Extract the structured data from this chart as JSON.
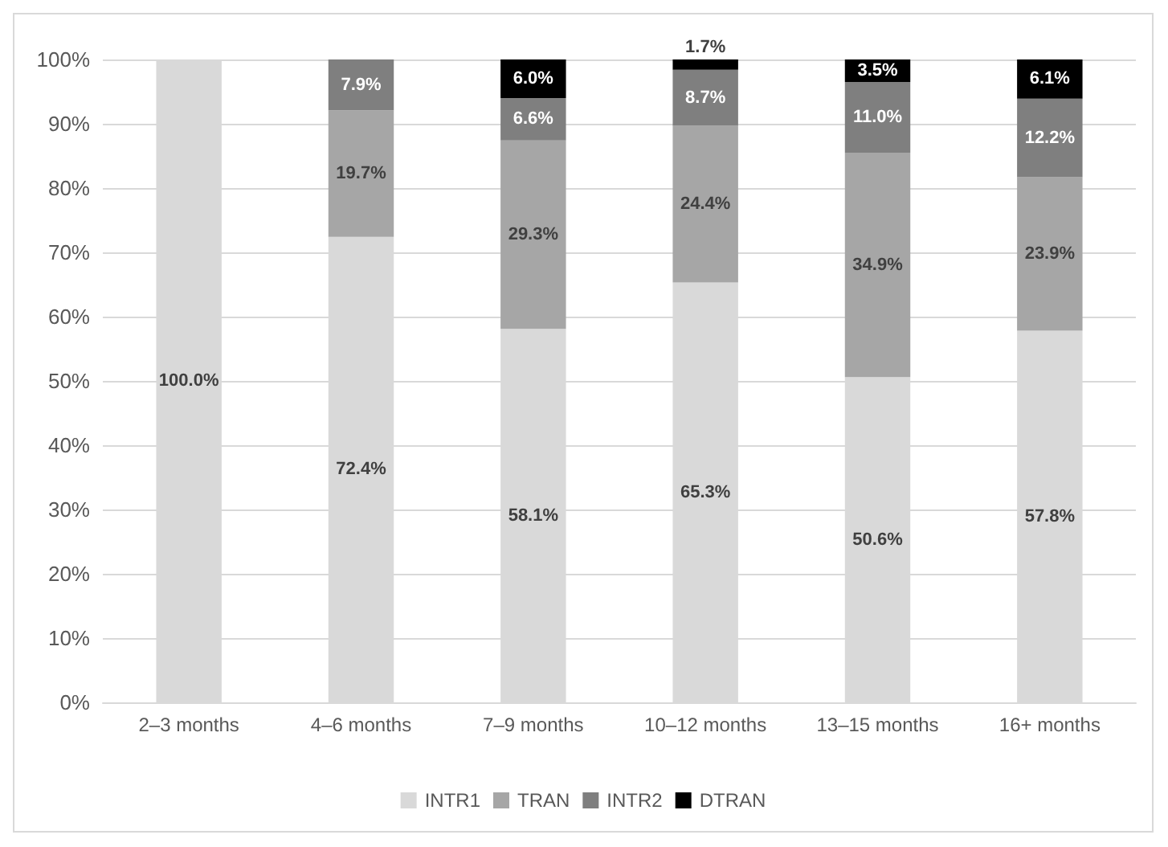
{
  "chart_data": {
    "type": "bar",
    "stacked": true,
    "categories": [
      "2–3 months",
      "4–6 months",
      "7–9 months",
      "10–12 months",
      "13–15 months",
      "16+ months"
    ],
    "series": [
      {
        "name": "INTR1",
        "color": "#d9d9d9",
        "values": [
          100,
          72.4,
          58.1,
          65.3,
          50.6,
          57.8
        ],
        "value_labels": [
          "100.0%",
          "72.4%",
          "58.1%",
          "65.3%",
          "50.6%",
          "57.8%"
        ]
      },
      {
        "name": "TRAN",
        "color": "#a6a6a6",
        "values": [
          null,
          19.7,
          29.3,
          24.4,
          34.9,
          23.9
        ],
        "value_labels": [
          null,
          "19.7%",
          "29.3%",
          "24.4%",
          "34.9%",
          "23.9%"
        ]
      },
      {
        "name": "INTR2",
        "color": "#7f7f7f",
        "values": [
          null,
          7.9,
          6.6,
          8.7,
          11.0,
          12.2
        ],
        "value_labels": [
          null,
          "7.9%",
          "6.6%",
          "8.7%",
          "11.0%",
          "12.2%"
        ]
      },
      {
        "name": "DTRAN",
        "color": "#000000",
        "values": [
          null,
          null,
          6.0,
          1.7,
          3.5,
          6.1
        ],
        "value_labels": [
          null,
          null,
          "6.0%",
          "1.7%",
          "3.5%",
          "6.1%"
        ]
      }
    ],
    "ylim": [
      0,
      100
    ],
    "yticks": [
      {
        "value": 0,
        "label": "0%"
      },
      {
        "value": 10,
        "label": "10%"
      },
      {
        "value": 20,
        "label": "20%"
      },
      {
        "value": 30,
        "label": "30%"
      },
      {
        "value": 40,
        "label": "40%"
      },
      {
        "value": 50,
        "label": "50%"
      },
      {
        "value": 60,
        "label": "60%"
      },
      {
        "value": 70,
        "label": "70%"
      },
      {
        "value": 80,
        "label": "80%"
      },
      {
        "value": 90,
        "label": "90%"
      },
      {
        "value": 100,
        "label": "100%"
      }
    ],
    "grid": "y",
    "legend": "bottom"
  }
}
